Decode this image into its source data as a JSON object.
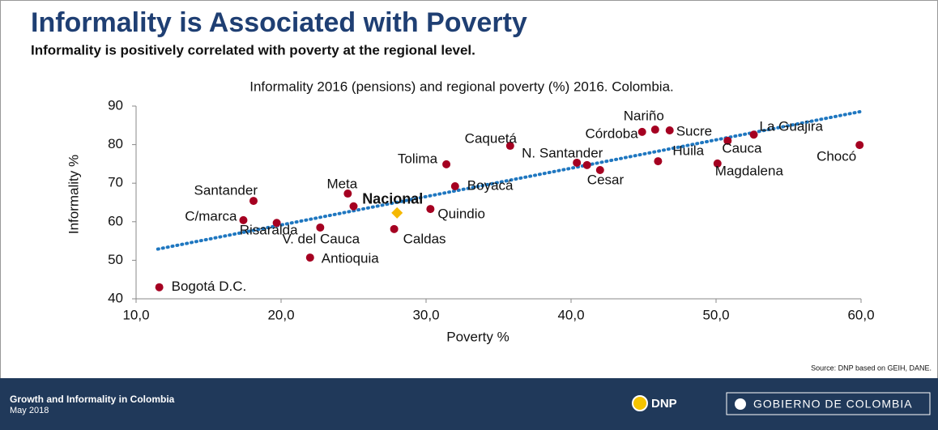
{
  "header": {
    "title": "Informality is Associated with Poverty",
    "subtitle": "Informality is positively correlated with poverty at the regional level."
  },
  "chart_data": {
    "type": "scatter",
    "title": "Informality 2016 (pensions) and regional poverty (%) 2016. Colombia.",
    "x_label": "Poverty %",
    "y_label": "Informality %",
    "labels": [
      "Bogotá D.C.",
      "Antioquia",
      "Santander",
      "C/marca",
      "Risaralda",
      "V. del Cauca",
      "Meta",
      null,
      "Caldas",
      "Quindio",
      "Boyacá",
      "Tolima",
      "Caquetá",
      "N. Santander",
      null,
      "Huila",
      "Cesar",
      "Córdoba",
      "Nariño",
      "Sucre",
      "Magdalena",
      "Cauca",
      "La Guajira",
      "Chocó"
    ],
    "x": [
      11.6,
      22.0,
      18.1,
      17.4,
      19.7,
      22.7,
      24.6,
      25.0,
      27.8,
      30.3,
      32.0,
      31.4,
      35.8,
      40.4,
      41.1,
      46.0,
      42.0,
      44.9,
      45.8,
      46.8,
      50.1,
      50.8,
      52.6,
      59.9
    ],
    "values": [
      43.0,
      50.7,
      65.4,
      60.4,
      59.7,
      58.5,
      67.3,
      64.0,
      58.1,
      63.3,
      69.2,
      74.9,
      79.7,
      75.3,
      74.7,
      75.7,
      73.4,
      83.3,
      83.9,
      83.7,
      75.1,
      81.0,
      82.6,
      79.9
    ],
    "color": "#a50021",
    "highlight": {
      "label": "Nacional",
      "x": 28.0,
      "y": 62.3,
      "color": "#f5b800"
    },
    "trendline": {
      "x": [
        11.5,
        60.0
      ],
      "y": [
        52.9,
        88.6
      ],
      "color": "#1f77c0"
    },
    "xlim": [
      10,
      60
    ],
    "xticks": [
      {
        "value": 10,
        "label": "10,0"
      },
      {
        "value": 20,
        "label": "20,0"
      },
      {
        "value": 30,
        "label": "30,0"
      },
      {
        "value": 40,
        "label": "40,0"
      },
      {
        "value": 50,
        "label": "50,0"
      },
      {
        "value": 60,
        "label": "60,0"
      }
    ],
    "ylim": [
      40,
      90
    ],
    "yticks": [
      40,
      50,
      60,
      70,
      80,
      90
    ],
    "source": "Source: DNP based on GEIH, DANE."
  },
  "footer": {
    "title": "Growth and Informality in Colombia",
    "date": "May 2018",
    "logo1": "DNP",
    "logo2": "GOBIERNO DE COLOMBIA"
  }
}
